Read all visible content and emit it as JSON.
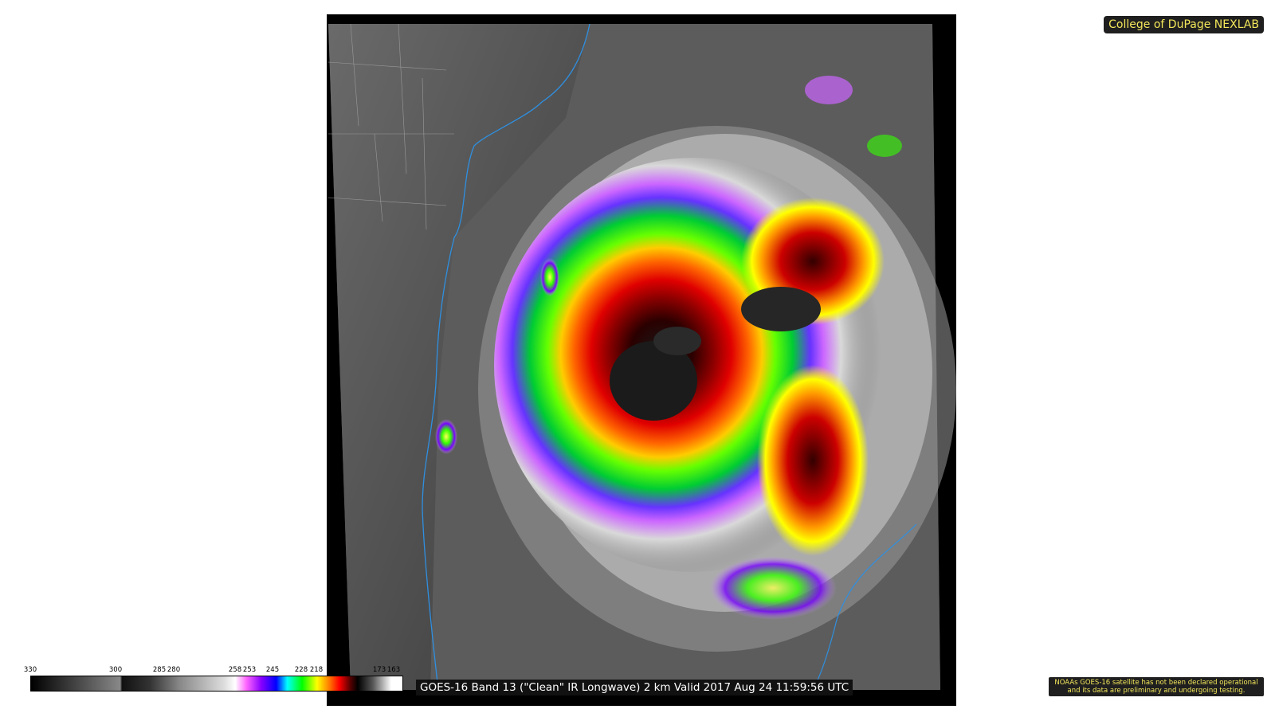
{
  "map": {
    "product": "GOES-16 Band 13 (\"Clean\" IR Longwave) 2 km Valid 2017 Aug 24 11:59:56 UTC"
  },
  "brand": {
    "label": "College of DuPage NEXLAB"
  },
  "notice": {
    "line1": "NOAAs GOES-16 satellite has not been declared operational",
    "line2": "and its data are preliminary and undergoing testing."
  },
  "colorbar": {
    "ticks": [
      "330",
      "300",
      "285",
      "280",
      "258",
      "253",
      "245",
      "228",
      "218",
      "173",
      "163"
    ],
    "tick_values": [
      330,
      300,
      285,
      280,
      258,
      253,
      245,
      228,
      218,
      173,
      163
    ]
  },
  "colors": {
    "coast": "#2f8fe0",
    "boundary": "#9a9a9a",
    "brand_text": "#f2e65a"
  }
}
